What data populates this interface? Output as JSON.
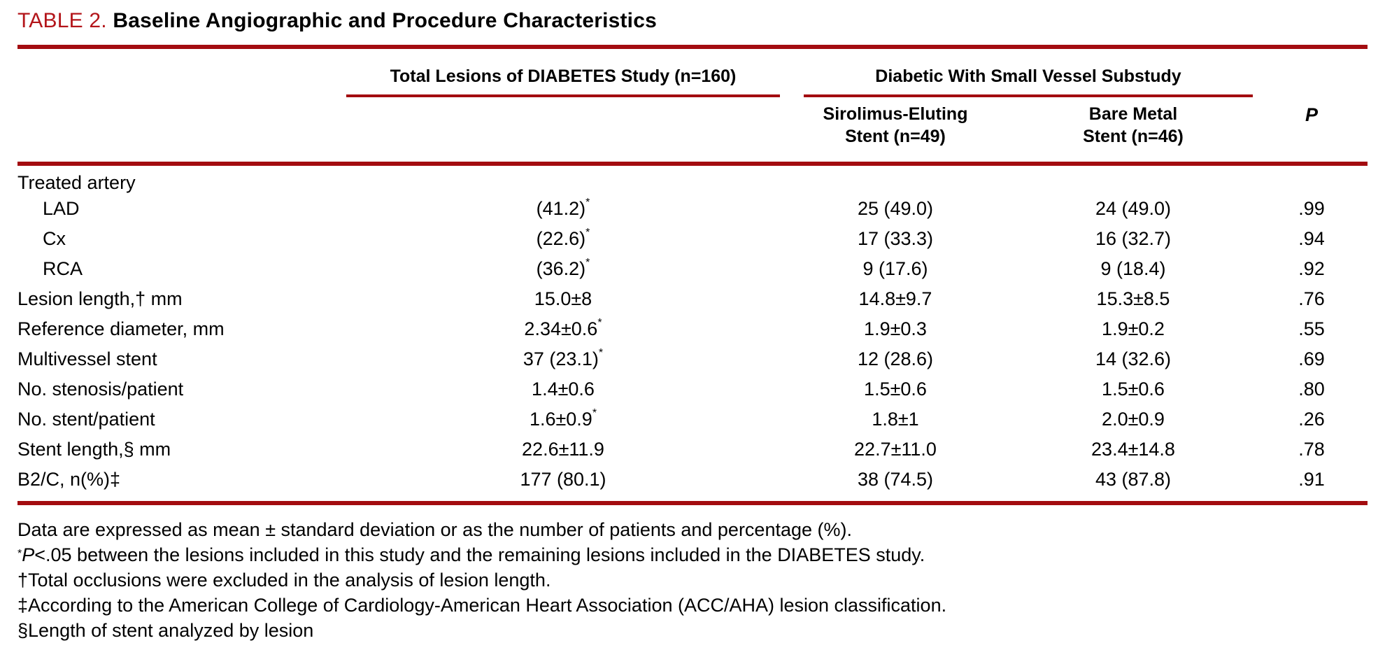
{
  "title": {
    "number_label": "TABLE 2.",
    "text": "Baseline Angiographic and Procedure Characteristics"
  },
  "colors": {
    "rule_red": "#A30C10",
    "title_red": "#B3151A"
  },
  "header": {
    "group_total": "Total Lesions of DIABETES Study (n=160)",
    "group_substudy": "Diabetic With Small Vessel Substudy",
    "col_sirolimus_lines": [
      "Sirolimus-Eluting",
      "Stent (n=49)"
    ],
    "col_bare_metal_lines": [
      "Bare Metal",
      "Stent (n=46)"
    ],
    "p_label": "P"
  },
  "table": {
    "rows": [
      {
        "label": "Treated artery",
        "indent": 0,
        "values": [
          "",
          "",
          "",
          ""
        ]
      },
      {
        "label": "LAD",
        "indent": 1,
        "values": [
          "(41.2)*",
          "25 (49.0)",
          "24 (49.0)",
          ".99"
        ]
      },
      {
        "label": "Cx",
        "indent": 1,
        "values": [
          "(22.6)*",
          "17 (33.3)",
          "16 (32.7)",
          ".94"
        ]
      },
      {
        "label": "RCA",
        "indent": 1,
        "values": [
          "(36.2)*",
          "9 (17.6)",
          "9 (18.4)",
          ".92"
        ]
      },
      {
        "label": "Lesion length,† mm",
        "indent": 0,
        "values": [
          "15.0±8",
          "14.8±9.7",
          "15.3±8.5",
          ".76"
        ]
      },
      {
        "label": "Reference diameter, mm",
        "indent": 0,
        "values": [
          "2.34±0.6*",
          "1.9±0.3",
          "1.9±0.2",
          ".55"
        ]
      },
      {
        "label": "Multivessel stent",
        "indent": 0,
        "values": [
          "37 (23.1)*",
          "12 (28.6)",
          "14 (32.6)",
          ".69"
        ]
      },
      {
        "label": "No. stenosis/patient",
        "indent": 0,
        "values": [
          "1.4±0.6",
          "1.5±0.6",
          "1.5±0.6",
          ".80"
        ]
      },
      {
        "label": "No. stent/patient",
        "indent": 0,
        "values": [
          "1.6±0.9*",
          "1.8±1",
          "2.0±0.9",
          ".26"
        ]
      },
      {
        "label": "Stent length,§ mm",
        "indent": 0,
        "values": [
          "22.6±11.9",
          "22.7±11.0",
          "23.4±14.8",
          ".78"
        ]
      },
      {
        "label": "B2/C, n(%)‡",
        "indent": 0,
        "values": [
          "177 (80.1)",
          "38 (74.5)",
          "43 (87.8)",
          ".91"
        ]
      }
    ]
  },
  "footnotes": [
    {
      "text": "Data are expressed as mean ± standard deviation or as the number of patients and percentage (%)."
    },
    {
      "sup": "*",
      "italic": "P",
      "text": "<.05 between the lesions included in this study and the remaining lesions included in the DIABETES study."
    },
    {
      "text": "†Total occlusions were excluded in the analysis of lesion length."
    },
    {
      "text": "‡According to the American College of Cardiology-American Heart Association (ACC/AHA) lesion classification."
    },
    {
      "text": "§Length of stent analyzed by lesion"
    }
  ]
}
